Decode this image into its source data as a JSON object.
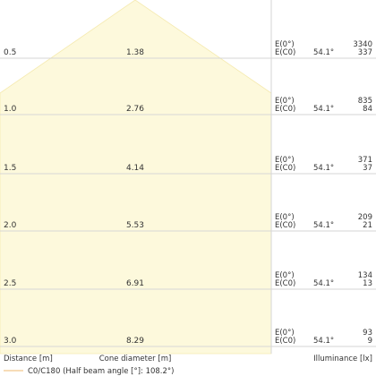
{
  "chart_data": {
    "type": "cone-diagram",
    "distance_unit_label": "Distance [m]",
    "cone_diameter_label": "Cone diameter [m]",
    "illuminance_label": "Illuminance [lx]",
    "legend": "C0/C180 (Half beam angle [°]: 108.2°)",
    "rows": [
      {
        "distance": "0.5",
        "cone_diameter": "1.38",
        "e0_label": "E(0°)",
        "ec0_label": "E(C0)",
        "angle": "54.1°",
        "e0": "3340",
        "ec0": "337"
      },
      {
        "distance": "1.0",
        "cone_diameter": "2.76",
        "e0_label": "E(0°)",
        "ec0_label": "E(C0)",
        "angle": "54.1°",
        "e0": "835",
        "ec0": "84"
      },
      {
        "distance": "1.5",
        "cone_diameter": "4.14",
        "e0_label": "E(0°)",
        "ec0_label": "E(C0)",
        "angle": "54.1°",
        "e0": "371",
        "ec0": "37"
      },
      {
        "distance": "2.0",
        "cone_diameter": "5.53",
        "e0_label": "E(0°)",
        "ec0_label": "E(C0)",
        "angle": "54.1°",
        "e0": "209",
        "ec0": "21"
      },
      {
        "distance": "2.5",
        "cone_diameter": "6.91",
        "e0_label": "E(0°)",
        "ec0_label": "E(C0)",
        "angle": "54.1°",
        "e0": "134",
        "ec0": "13"
      },
      {
        "distance": "3.0",
        "cone_diameter": "8.29",
        "e0_label": "E(0°)",
        "ec0_label": "E(C0)",
        "angle": "54.1°",
        "e0": "93",
        "ec0": "9"
      }
    ],
    "colors": {
      "cone_fill": "#fdf9dc",
      "cone_stroke": "#f5eab0",
      "grid": "#d6d6d6",
      "legend_line": "#f2c68c",
      "text": "#333333"
    }
  }
}
